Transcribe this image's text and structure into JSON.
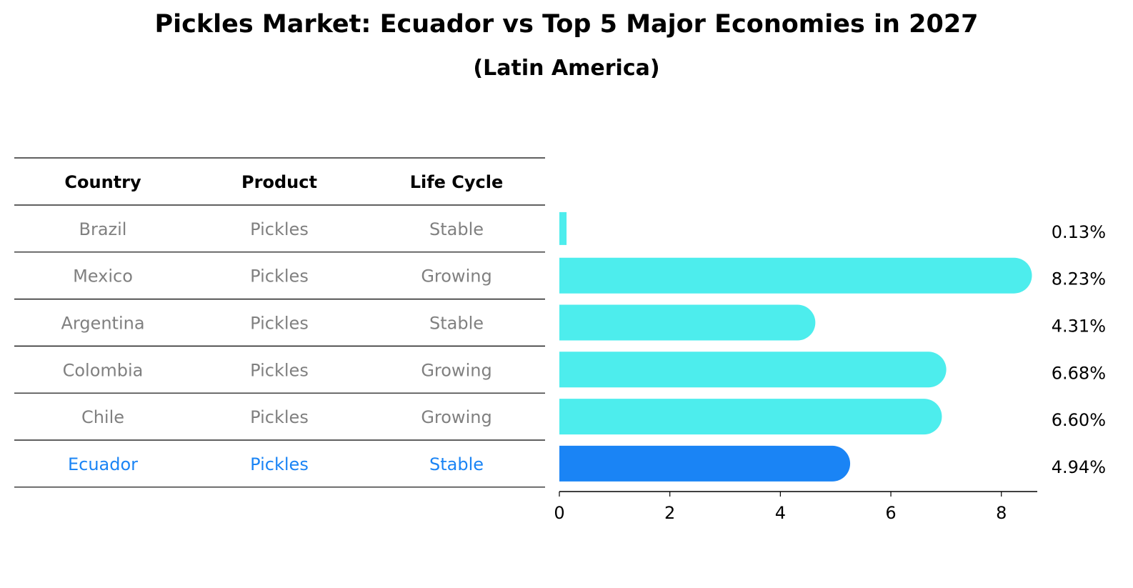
{
  "title": "Pickles Market: Ecuador vs Top 5 Major Economies in 2027",
  "subtitle": "(Latin America)",
  "table": {
    "headers": [
      "Country",
      "Product",
      "Life Cycle"
    ],
    "rows": [
      [
        "Brazil",
        "Pickles",
        "Stable"
      ],
      [
        "Mexico",
        "Pickles",
        "Growing"
      ],
      [
        "Argentina",
        "Pickles",
        "Stable"
      ],
      [
        "Colombia",
        "Pickles",
        "Growing"
      ],
      [
        "Chile",
        "Pickles",
        "Growing"
      ],
      [
        "Ecuador",
        "Pickles",
        "Stable"
      ]
    ],
    "highlight_row": 5
  },
  "colors": {
    "bar": "#4DEDED",
    "highlight": "#1A84F5",
    "table_text": "#808080",
    "highlight_text": "#1A84F5"
  },
  "chart_data": {
    "type": "bar",
    "orientation": "horizontal",
    "categories": [
      "Brazil",
      "Mexico",
      "Argentina",
      "Colombia",
      "Chile",
      "Ecuador"
    ],
    "values": [
      0.13,
      8.23,
      4.31,
      6.68,
      6.6,
      4.94
    ],
    "value_labels": [
      "0.13%",
      "8.23%",
      "4.31%",
      "6.68%",
      "6.60%",
      "4.94%"
    ],
    "xticks": [
      0,
      2,
      4,
      6,
      8
    ],
    "xlim": [
      0,
      8.65
    ],
    "grid": false
  }
}
